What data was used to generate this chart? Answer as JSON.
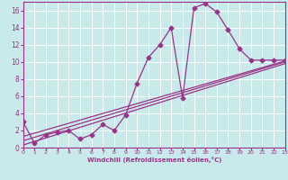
{
  "xlabel": "Windchill (Refroidissement éolien,°C)",
  "background_color": "#c8eaea",
  "line_color": "#993388",
  "marker": "D",
  "markersize": 2.5,
  "linewidth": 0.9,
  "xlim": [
    0,
    23
  ],
  "ylim": [
    0,
    17
  ],
  "xticks": [
    0,
    1,
    2,
    3,
    4,
    5,
    6,
    7,
    8,
    9,
    10,
    11,
    12,
    13,
    14,
    15,
    16,
    17,
    18,
    19,
    20,
    21,
    22,
    23
  ],
  "yticks": [
    0,
    2,
    4,
    6,
    8,
    10,
    12,
    14,
    16
  ],
  "main_series": {
    "x": [
      0,
      1,
      2,
      3,
      4,
      5,
      6,
      7,
      8,
      9,
      10,
      11,
      12,
      13,
      14,
      15,
      16,
      17,
      18,
      19,
      20,
      21,
      22,
      23
    ],
    "y": [
      3.0,
      0.5,
      1.5,
      1.8,
      2.0,
      1.0,
      1.5,
      2.7,
      2.0,
      3.8,
      7.5,
      10.5,
      12.0,
      14.0,
      5.8,
      16.3,
      16.8,
      15.8,
      13.7,
      11.5,
      10.2,
      10.2,
      10.2,
      10.2
    ]
  },
  "trend_lines": [
    {
      "x": [
        0,
        23
      ],
      "y": [
        0.3,
        9.8
      ]
    },
    {
      "x": [
        0,
        23
      ],
      "y": [
        0.8,
        10.0
      ]
    },
    {
      "x": [
        0,
        23
      ],
      "y": [
        1.3,
        10.1
      ]
    }
  ]
}
